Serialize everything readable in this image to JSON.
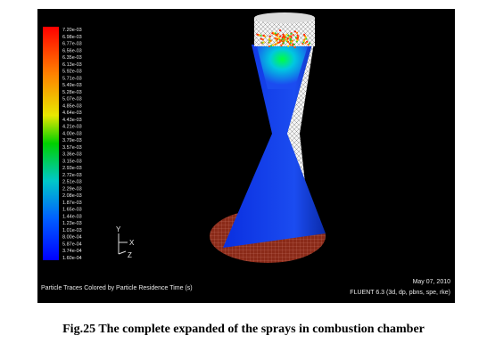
{
  "figure": {
    "colorbar": {
      "labels": [
        "7.20e-03",
        "6.98e-03",
        "6.77e-03",
        "6.56e-03",
        "6.35e-03",
        "6.13e-03",
        "5.92e-03",
        "5.71e-03",
        "5.49e-03",
        "5.28e-03",
        "5.07e-03",
        "4.85e-03",
        "4.64e-03",
        "4.43e-03",
        "4.21e-03",
        "4.00e-03",
        "3.79e-03",
        "3.57e-03",
        "3.36e-03",
        "3.15e-03",
        "2.93e-03",
        "2.72e-03",
        "2.51e-03",
        "2.29e-03",
        "2.08e-03",
        "1.87e-03",
        "1.65e-03",
        "1.44e-03",
        "1.23e-03",
        "1.01e-03",
        "8.00e-04",
        "5.87e-04",
        "3.74e-04",
        "1.60e-04"
      ]
    },
    "axes": {
      "y": "Y",
      "x": "X",
      "z": "Z"
    },
    "footer": {
      "left": "Particle Traces Colored by Particle Residence Time (s)",
      "date": "May 07, 2010",
      "solver": "FLUENT 6.3 (3d, dp, pbns, spe, rke)"
    },
    "caption": "Fig.25 The complete expanded of the sprays in combustion chamber"
  }
}
